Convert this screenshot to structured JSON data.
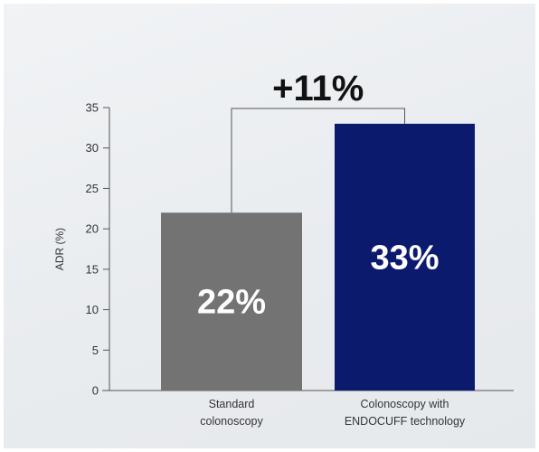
{
  "chart_data": {
    "type": "bar",
    "categories": [
      [
        "Standard",
        "colonoscopy"
      ],
      [
        "Colonoscopy with",
        "ENDOCUFF technology"
      ]
    ],
    "values": [
      22,
      33
    ],
    "value_labels": [
      "22%",
      "33%"
    ],
    "bar_colors": [
      "#737373",
      "#0c1a6e"
    ],
    "ylabel": "ADR (%)",
    "ylim": [
      0,
      35
    ],
    "yticks": [
      0,
      5,
      10,
      15,
      20,
      25,
      30,
      35
    ],
    "difference_label": "+11%",
    "grid": false,
    "legend": "none"
  }
}
